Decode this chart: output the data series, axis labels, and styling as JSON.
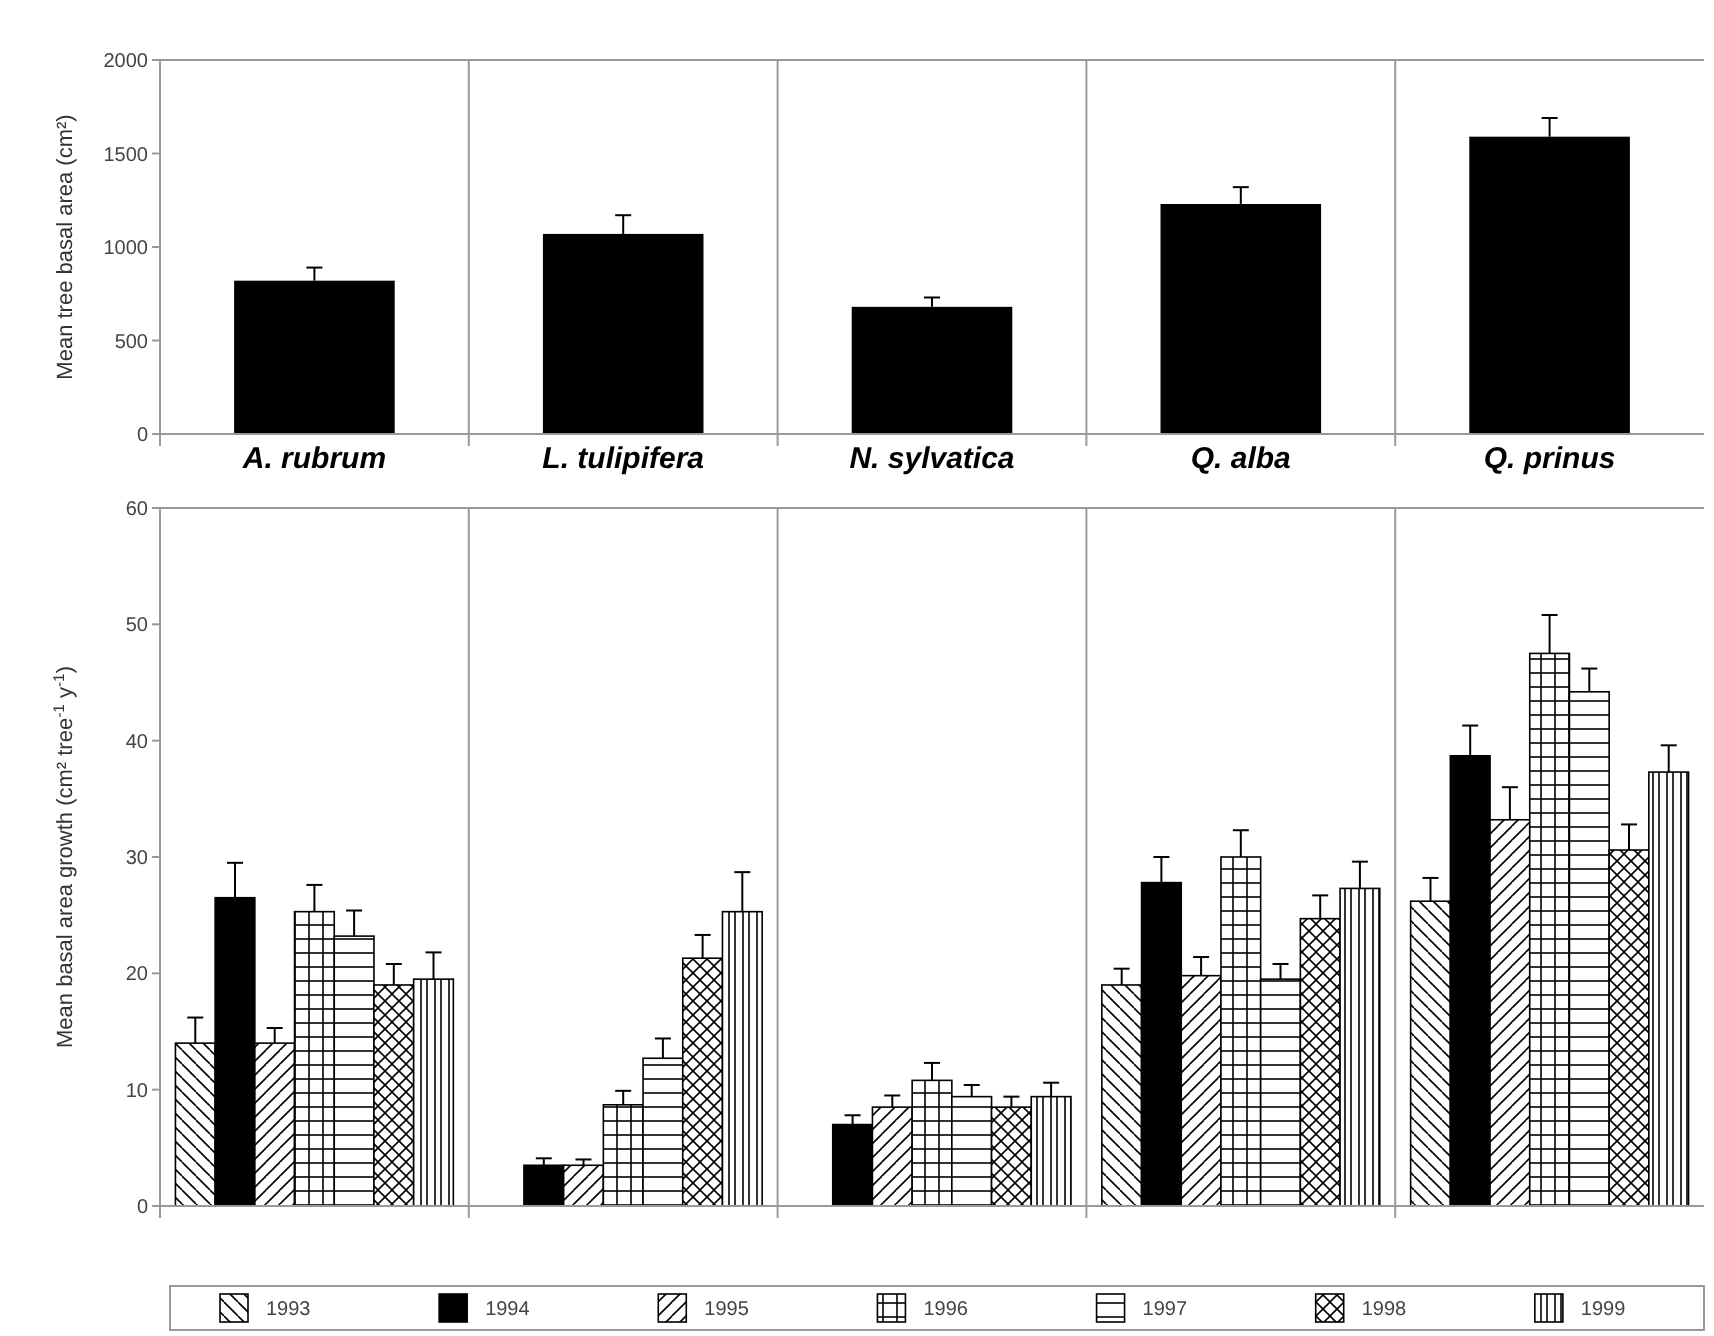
{
  "chart_data": [
    {
      "type": "bar",
      "ylabel": "Mean tree basal area (cm²)",
      "categories": [
        "A. rubrum",
        "L. tulipifera",
        "N. sylvatica",
        "Q. alba",
        "Q. prinus"
      ],
      "values": [
        820,
        1070,
        680,
        1230,
        1590
      ],
      "errors": [
        70,
        100,
        50,
        90,
        100
      ],
      "color": "#000000",
      "ylim": [
        0,
        2000
      ],
      "yticks": [
        0,
        500,
        1000,
        1500,
        2000
      ],
      "grid": false
    },
    {
      "type": "bar",
      "ylabel": "Mean basal area growth (cm² tree$^{-1}$ y$^{-1}$)",
      "categories": [
        null,
        null,
        null,
        null,
        null
      ],
      "tick_labels": "y",
      "ylim": [
        0,
        60
      ],
      "yticks": [
        0,
        10,
        20,
        30,
        40,
        50,
        60
      ],
      "grid": false,
      "legend": "bottom",
      "series": [
        {
          "name": "1993",
          "color": "#000000",
          "values": [
            14,
            null,
            null,
            19,
            26.2
          ],
          "errors": [
            2.2,
            null,
            null,
            1.4,
            2
          ]
        },
        {
          "name": "1994",
          "color": "#000000",
          "values": [
            26.5,
            3.5,
            7,
            27.8,
            38.7
          ],
          "errors": [
            3,
            0.6,
            0.8,
            2.2,
            2.6
          ]
        },
        {
          "name": "1995",
          "color": "#000000",
          "values": [
            14,
            3.5,
            8.5,
            19.8,
            33.2
          ],
          "errors": [
            1.3,
            0.5,
            1,
            1.6,
            2.8
          ]
        },
        {
          "name": "1996",
          "color": "#000000",
          "values": [
            25.3,
            8.7,
            10.8,
            30,
            47.5
          ],
          "errors": [
            2.3,
            1.2,
            1.5,
            2.3,
            3.3
          ]
        },
        {
          "name": "1997",
          "color": "#000000",
          "values": [
            23.2,
            12.7,
            9.4,
            19.5,
            44.2
          ],
          "errors": [
            2.2,
            1.7,
            1,
            1.3,
            2
          ]
        },
        {
          "name": "1998",
          "color": "#000000",
          "values": [
            19,
            21.3,
            8.5,
            24.7,
            30.6
          ],
          "errors": [
            1.8,
            2,
            0.9,
            2,
            2.2
          ]
        },
        {
          "name": "1999",
          "color": "#000000",
          "values": [
            19.5,
            25.3,
            9.4,
            27.3,
            37.3
          ],
          "errors": [
            2.3,
            3.4,
            1.2,
            2.3,
            2.3
          ]
        }
      ]
    }
  ]
}
